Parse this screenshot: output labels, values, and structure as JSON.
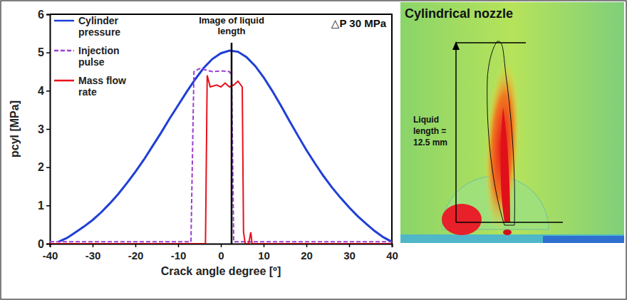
{
  "chart_data": {
    "type": "line",
    "x_label": "Crack angle degree [º]",
    "y_label": "pcyl [MPa]",
    "xlim": [
      -40,
      40
    ],
    "xticks": [
      -40,
      -30,
      -20,
      -10,
      0,
      10,
      20,
      30,
      40
    ],
    "ylim": [
      0,
      6
    ],
    "yticks": [
      0,
      1,
      2,
      3,
      4,
      5,
      6
    ],
    "grid": false,
    "legend": "upper left",
    "series": [
      {
        "name": "Cylinder pressure",
        "color": "#1f3fd6",
        "line_style": "solid",
        "x": [
          -38,
          -36,
          -34,
          -32,
          -30,
          -28,
          -26,
          -24,
          -22,
          -20,
          -18,
          -16,
          -14,
          -12,
          -10,
          -8,
          -6,
          -4,
          -2,
          0,
          2,
          4,
          6,
          8,
          10,
          12,
          14,
          16,
          18,
          20,
          22,
          24,
          26,
          28,
          30,
          32,
          34,
          36,
          38,
          40
        ],
        "values": [
          0.05,
          0.15,
          0.3,
          0.45,
          0.62,
          0.82,
          1.05,
          1.3,
          1.58,
          1.88,
          2.2,
          2.55,
          2.9,
          3.27,
          3.62,
          3.97,
          4.3,
          4.6,
          4.83,
          4.98,
          5.05,
          5.02,
          4.88,
          4.65,
          4.35,
          4.0,
          3.62,
          3.22,
          2.83,
          2.45,
          2.1,
          1.77,
          1.47,
          1.2,
          0.95,
          0.72,
          0.52,
          0.33,
          0.17,
          0.05
        ]
      },
      {
        "name": "Injection pulse",
        "color": "#9b3fd1",
        "line_style": "dashed",
        "x": [
          -40,
          -7,
          -6.3,
          -5,
          -2,
          0,
          2,
          2.5,
          3,
          40
        ],
        "values": [
          0.05,
          0.05,
          4.5,
          4.58,
          4.5,
          4.52,
          4.5,
          4.4,
          0.05,
          0.05
        ]
      },
      {
        "name": "Mass flow rate",
        "color": "#e8121c",
        "line_style": "solid",
        "x": [
          -40,
          -3.6,
          -3.2,
          -2.5,
          -1,
          0,
          1,
          2,
          3,
          4,
          5,
          5.3,
          5.7,
          6.5,
          7,
          7.3,
          40
        ],
        "values": [
          0,
          0,
          4.4,
          4.1,
          4.15,
          4.1,
          4.2,
          4.1,
          4.15,
          4.25,
          4.1,
          0.3,
          0,
          0,
          0.3,
          0,
          0
        ]
      }
    ],
    "annotations": [
      {
        "text": "Image of liquid length",
        "x": 2.5
      },
      {
        "text": "△P 30 MPa"
      }
    ]
  },
  "image": {
    "title": "Cylindrical nozzle",
    "label": "Liquid length = 12.5 mm"
  }
}
